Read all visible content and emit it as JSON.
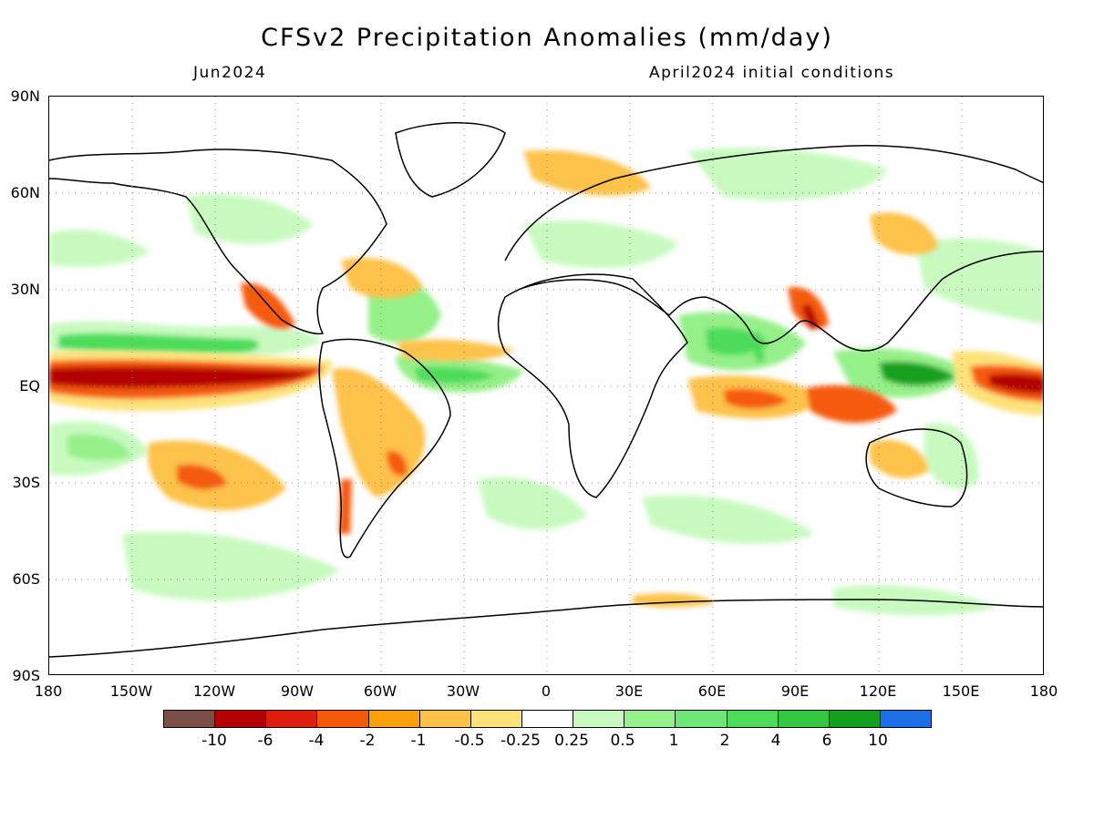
{
  "title": "CFSv2 Precipitation Anomalies (mm/day)",
  "subtitle_left": "Jun2024",
  "subtitle_right": "April2024 initial conditions",
  "lat_labels": [
    "90N",
    "60N",
    "30N",
    "EQ",
    "30S",
    "60S",
    "90S"
  ],
  "lon_labels": [
    "180",
    "150W",
    "120W",
    "90W",
    "60W",
    "30W",
    "0",
    "30E",
    "60E",
    "90E",
    "120E",
    "150E",
    "180"
  ],
  "colorbar": {
    "colors": [
      "#7b4f45",
      "#b40000",
      "#e01e10",
      "#f55a0a",
      "#f9a00a",
      "#fcc248",
      "#fde27a",
      "#ffffff",
      "#c8fac0",
      "#96f08a",
      "#6ee678",
      "#4ddc5a",
      "#32c841",
      "#14a01e",
      "#1e6ee6"
    ],
    "labels": [
      "-10",
      "-6",
      "-4",
      "-2",
      "-1",
      "-0.5",
      "-0.25",
      "0.25",
      "0.5",
      "1",
      "2",
      "4",
      "6",
      "10"
    ]
  },
  "anomaly_colors": {
    "strong_dry": "#b40000",
    "dry": "#f55a0a",
    "moderate_dry": "#f9a00a",
    "weak_dry": "#fcc248",
    "slight_dry": "#fde27a",
    "slight_wet": "#c8fac0",
    "weak_wet": "#96f08a",
    "moderate_wet": "#6ee678",
    "wet": "#4ddc5a",
    "strong_wet": "#14a01e",
    "extreme_wet": "#1e6ee6"
  }
}
